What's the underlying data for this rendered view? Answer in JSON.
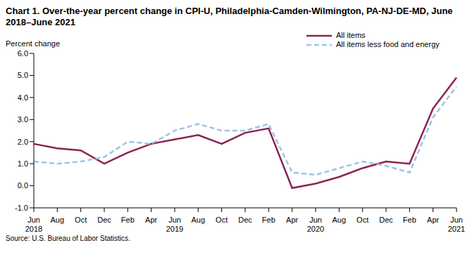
{
  "chart_data": {
    "type": "line",
    "title": "Chart 1. Over-the-year percent change in CPI-U, Philadelphia-Camden-Wilmington, PA-NJ-DE-MD,  June 2018–June 2021",
    "y_label": "Percent change",
    "source": "Source: U.S. Bureau of Labor Statistics.",
    "categories": [
      "Jun 2018",
      "Aug",
      "Oct",
      "Dec",
      "Feb",
      "Apr",
      "Jun 2019",
      "Aug",
      "Oct",
      "Dec",
      "Feb",
      "Apr",
      "Jun 2020",
      "Aug",
      "Oct",
      "Dec",
      "Feb",
      "Apr",
      "Jun 2021"
    ],
    "series": [
      {
        "name": "All items",
        "color": "#8b2252",
        "line_style": "solid",
        "values": [
          1.9,
          1.7,
          1.6,
          1.0,
          1.5,
          1.9,
          2.1,
          2.3,
          1.9,
          2.4,
          2.6,
          -0.1,
          0.1,
          0.4,
          0.8,
          1.1,
          1.0,
          3.5,
          4.9
        ]
      },
      {
        "name": "All items less food and energy",
        "color": "#9dc3e6",
        "line_style": "dashed",
        "values": [
          1.1,
          1.0,
          1.1,
          1.3,
          2.0,
          1.9,
          2.5,
          2.8,
          2.5,
          2.5,
          2.8,
          0.6,
          0.5,
          0.8,
          1.1,
          0.9,
          0.6,
          3.1,
          4.5
        ]
      }
    ],
    "ylim": [
      -1.0,
      6.0
    ],
    "yticks": [
      {
        "value": -1,
        "label": "-1.0"
      },
      {
        "value": 0,
        "label": "0.0"
      },
      {
        "value": 1,
        "label": "1.0"
      },
      {
        "value": 2,
        "label": "2.0"
      },
      {
        "value": 3,
        "label": "3.0"
      },
      {
        "value": 4,
        "label": "4.0"
      },
      {
        "value": 5,
        "label": "5.0"
      },
      {
        "value": 6,
        "label": "6.0"
      }
    ],
    "grid": false,
    "legend": "top-right"
  }
}
